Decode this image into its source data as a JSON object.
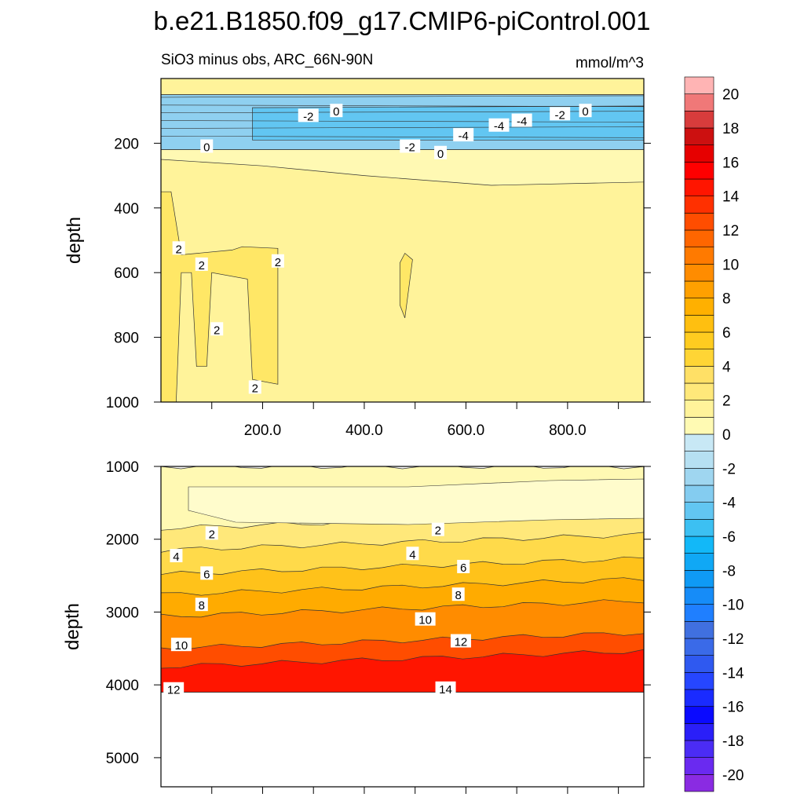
{
  "chart_data": {
    "type": "heatmap",
    "title": "b.e21.B1850.f09_g17.CMIP6-piControl.001",
    "subtitle": "SiO3 minus obs, ARC_66N-90N",
    "units": "mmol/m^3",
    "ylabel": "depth",
    "x_range": [
      0,
      950
    ],
    "x_ticks": [
      200,
      400,
      600,
      800
    ],
    "x_tick_labels": [
      "200.0",
      "400.0",
      "600.0",
      "800.0"
    ],
    "top_panel": {
      "ylim": [
        0,
        1000
      ],
      "y_ticks": [
        200,
        400,
        600,
        800,
        1000
      ],
      "y_tick_labels": [
        "200",
        "400",
        "600",
        "800",
        "1000"
      ],
      "layers": [
        {
          "level": 0.5,
          "color": "#fff39a",
          "outline": [
            [
              0,
              0
            ],
            [
              950,
              0
            ],
            [
              950,
              50
            ],
            [
              0,
              50
            ]
          ]
        },
        {
          "level": -2,
          "color": "#8fd0f0",
          "outline": [
            [
              0,
              50
            ],
            [
              950,
              50
            ],
            [
              950,
              220
            ],
            [
              0,
              220
            ]
          ]
        },
        {
          "level": -4,
          "color": "#62c6f2",
          "outline": [
            [
              180,
              90
            ],
            [
              950,
              85
            ],
            [
              950,
              190
            ],
            [
              180,
              190
            ]
          ]
        },
        {
          "level": 0.5,
          "color": "#fff9b3",
          "outline": [
            [
              0,
              220
            ],
            [
              950,
              220
            ],
            [
              950,
              320
            ],
            [
              650,
              330
            ],
            [
              400,
              300
            ],
            [
              200,
              270
            ],
            [
              0,
              250
            ]
          ]
        },
        {
          "level": 2,
          "color": "#ffe766",
          "outline": [
            [
              0,
              350
            ],
            [
              20,
              350
            ],
            [
              40,
              545
            ],
            [
              140,
              530
            ],
            [
              160,
              520
            ],
            [
              230,
              525
            ],
            [
              230,
              945
            ],
            [
              180,
              930
            ],
            [
              170,
              620
            ],
            [
              100,
              600
            ],
            [
              90,
              890
            ],
            [
              70,
              890
            ],
            [
              60,
              600
            ],
            [
              40,
              600
            ],
            [
              30,
              1000
            ],
            [
              0,
              1000
            ]
          ]
        },
        {
          "level": 2,
          "color": "#ffe766",
          "outline": [
            [
              470,
              570
            ],
            [
              480,
              540
            ],
            [
              495,
              560
            ],
            [
              480,
              740
            ],
            [
              470,
              700
            ]
          ]
        }
      ],
      "contour_labels": [
        {
          "text": "-2",
          "x": 290,
          "y": 115
        },
        {
          "text": "0",
          "x": 345,
          "y": 100
        },
        {
          "text": "-2",
          "x": 785,
          "y": 110
        },
        {
          "text": "0",
          "x": 835,
          "y": 100
        },
        {
          "text": "-4",
          "x": 710,
          "y": 130
        },
        {
          "text": "-4",
          "x": 665,
          "y": 145
        },
        {
          "text": "-4",
          "x": 595,
          "y": 175
        },
        {
          "text": "-2",
          "x": 490,
          "y": 210
        },
        {
          "text": "0",
          "x": 550,
          "y": 230
        },
        {
          "text": "0",
          "x": 90,
          "y": 210
        },
        {
          "text": "2",
          "x": 35,
          "y": 525
        },
        {
          "text": "2",
          "x": 80,
          "y": 575
        },
        {
          "text": "2",
          "x": 230,
          "y": 565
        },
        {
          "text": "2",
          "x": 110,
          "y": 775
        },
        {
          "text": "2",
          "x": 185,
          "y": 955
        }
      ]
    },
    "bottom_panel": {
      "ylim": [
        1000,
        5400
      ],
      "y_ticks": [
        1000,
        2000,
        3000,
        4000,
        5000
      ],
      "y_tick_labels": [
        "1000",
        "2000",
        "3000",
        "4000",
        "5000"
      ],
      "data_bottom": 4100,
      "bands": [
        {
          "level": 0.5,
          "color": "#fff9b3",
          "top": 1000
        },
        {
          "level": 2,
          "color": "#ffe87a",
          "top": 1850
        },
        {
          "level": 4,
          "color": "#ffda4a",
          "top": 2150
        },
        {
          "level": 6,
          "color": "#ffc21a",
          "top": 2480
        },
        {
          "level": 8,
          "color": "#ffab00",
          "top": 2760
        },
        {
          "level": 10,
          "color": "#ff8c00",
          "top": 3060
        },
        {
          "level": 12,
          "color": "#ff4d00",
          "top": 3500
        },
        {
          "level": 14,
          "color": "#ff1500",
          "top": 3750
        }
      ],
      "contour_labels": [
        {
          "text": "2",
          "x": 100,
          "y": 1920
        },
        {
          "text": "4",
          "x": 30,
          "y": 2230
        },
        {
          "text": "6",
          "x": 90,
          "y": 2470
        },
        {
          "text": "8",
          "x": 80,
          "y": 2900
        },
        {
          "text": "10",
          "x": 40,
          "y": 3450
        },
        {
          "text": "12",
          "x": 25,
          "y": 4060
        },
        {
          "text": "2",
          "x": 545,
          "y": 1870
        },
        {
          "text": "4",
          "x": 495,
          "y": 2200
        },
        {
          "text": "6",
          "x": 595,
          "y": 2380
        },
        {
          "text": "8",
          "x": 585,
          "y": 2760
        },
        {
          "text": "10",
          "x": 520,
          "y": 3100
        },
        {
          "text": "12",
          "x": 590,
          "y": 3400
        },
        {
          "text": "14",
          "x": 560,
          "y": 4050
        }
      ]
    },
    "colorbar": {
      "levels": [
        -20,
        -19,
        -18,
        -17,
        -16,
        -15,
        -14,
        -13,
        -12,
        -11,
        -10,
        -9,
        -8,
        -7,
        -6,
        -5,
        -4,
        -3,
        -2,
        -1,
        0,
        1,
        2,
        3,
        4,
        5,
        6,
        7,
        8,
        9,
        10,
        11,
        12,
        13,
        14,
        15,
        16,
        17,
        18,
        19,
        20
      ],
      "labels": [
        "-20",
        "-18",
        "-16",
        "-14",
        "-12",
        "-10",
        "-8",
        "-6",
        "-4",
        "-2",
        "0",
        "2",
        "4",
        "6",
        "8",
        "10",
        "12",
        "14",
        "16",
        "18",
        "20"
      ],
      "colors": [
        "#8a2be2",
        "#6a2af0",
        "#4b2cf5",
        "#2a1ff8",
        "#0a0aff",
        "#1a2bff",
        "#2646ff",
        "#2f59f0",
        "#3a6ae8",
        "#4070e0",
        "#1f7fff",
        "#168cf8",
        "#0f9af5",
        "#10a8f5",
        "#12b8f8",
        "#3cc0f2",
        "#62c6f2",
        "#84ccf0",
        "#9fd6f0",
        "#b6e0f2",
        "#c8e8f5",
        "#fffab3",
        "#fff39a",
        "#ffe87a",
        "#ffe066",
        "#ffd535",
        "#ffcc20",
        "#ffbf10",
        "#ffb000",
        "#ffa000",
        "#ff8c00",
        "#ff7a00",
        "#ff6600",
        "#ff4d00",
        "#ff3000",
        "#ff1500",
        "#ff0000",
        "#e60000",
        "#cc1010",
        "#d83c3c",
        "#f07878",
        "#ffb4b4"
      ]
    }
  }
}
